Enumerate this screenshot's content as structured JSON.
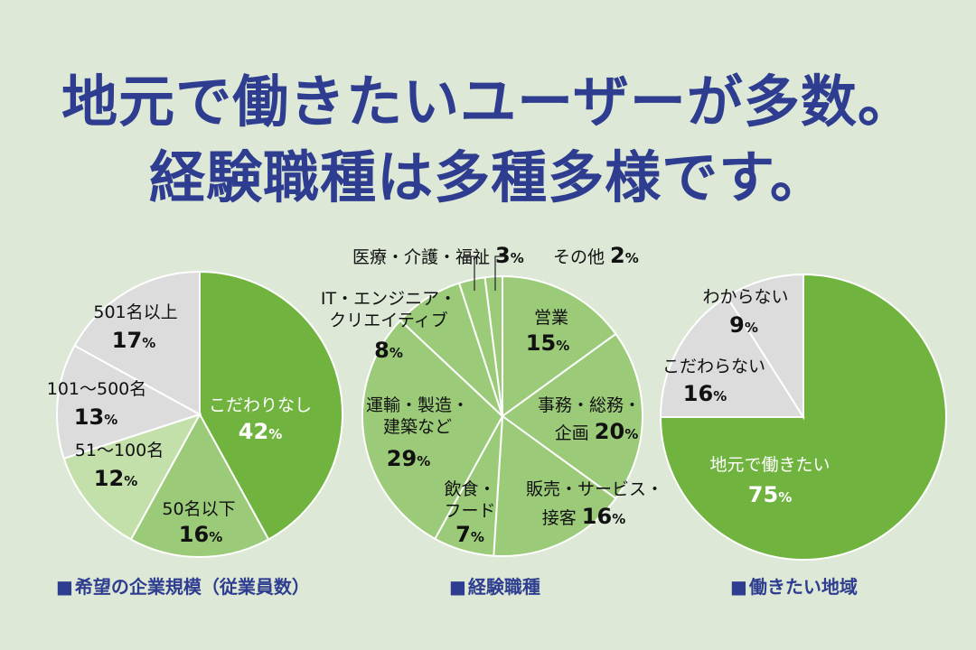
{
  "title": {
    "line1": "地元で働きたいユーザーが多数。",
    "line2": "経験職種は多種多様です。"
  },
  "colors": {
    "title": "#2e3d8f",
    "dark_green": "#70b43f",
    "mid_green": "#9bcb78",
    "light_green": "#c3dfaa",
    "gray": "#dcdcdc"
  },
  "chart_data": [
    {
      "type": "pie",
      "title": "希望の企業規模（従業員数）",
      "start": "12 o'clock, clockwise",
      "slices": [
        {
          "label": "こだわりなし",
          "value": 42,
          "display": "42%",
          "color": "#70b43f"
        },
        {
          "label": "50名以下",
          "value": 16,
          "display": "16%",
          "color": "#9bcb78"
        },
        {
          "label": "51〜100名",
          "value": 12,
          "display": "12%",
          "color": "#c3dfaa"
        },
        {
          "label": "101〜500名",
          "value": 13,
          "display": "13%",
          "color": "#dcdcdc"
        },
        {
          "label": "501名以上",
          "value": 17,
          "display": "17%",
          "color": "#dcdcdc"
        }
      ]
    },
    {
      "type": "pie",
      "title": "経験職種",
      "start": "12 o'clock, clockwise",
      "slices": [
        {
          "label": "営業",
          "value": 15,
          "display": "15%",
          "color": "#9bcb78"
        },
        {
          "label": "事務・総務・企画",
          "value": 20,
          "display": "20%",
          "color": "#9bcb78"
        },
        {
          "label": "販売・サービス・接客",
          "value": 16,
          "display": "16%",
          "color": "#9bcb78"
        },
        {
          "label": "飲食・フード",
          "value": 7,
          "display": "7%",
          "color": "#9bcb78"
        },
        {
          "label": "運輸・製造・建築など",
          "value": 29,
          "display": "29%",
          "color": "#9bcb78"
        },
        {
          "label": "IT・エンジニア・クリエイティブ",
          "value": 8,
          "display": "8%",
          "color": "#9bcb78"
        },
        {
          "label": "医療・介護・福祉",
          "value": 3,
          "display": "3%",
          "color": "#9bcb78"
        },
        {
          "label": "その他",
          "value": 2,
          "display": "2%",
          "color": "#9bcb78"
        }
      ]
    },
    {
      "type": "pie",
      "title": "働きたい地域",
      "start": "12 o'clock, clockwise",
      "slices": [
        {
          "label": "地元で働きたい",
          "value": 75,
          "display": "75%",
          "color": "#70b43f"
        },
        {
          "label": "こだわらない",
          "value": 16,
          "display": "16%",
          "color": "#dcdcdc"
        },
        {
          "label": "わからない",
          "value": 9,
          "display": "9%",
          "color": "#dcdcdc"
        }
      ]
    }
  ]
}
